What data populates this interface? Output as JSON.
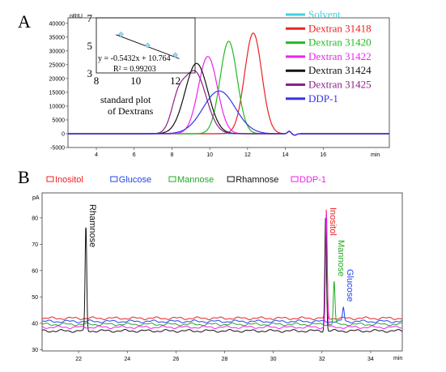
{
  "chart_data": [
    {
      "panel_label": "A",
      "type": "line",
      "y_unit": "nRIU",
      "x_unit": "min",
      "xlim": [
        2.5,
        19.5
      ],
      "ylim": [
        -5000,
        42000
      ],
      "x_ticks": [
        4,
        6,
        8,
        10,
        12,
        14,
        16
      ],
      "y_ticks": [
        -5000,
        0,
        5000,
        10000,
        15000,
        20000,
        25000,
        30000,
        35000,
        40000
      ],
      "legend_position": "right",
      "series": [
        {
          "name": "Solvent",
          "color": "#44d0e0",
          "peaks": []
        },
        {
          "name": "Dextran 31418",
          "color": "#ee2020",
          "peaks": [
            {
              "x": 12.3,
              "y": 36500,
              "w": 0.45
            }
          ]
        },
        {
          "name": "Dextran 31420",
          "color": "#22bb22",
          "peaks": [
            {
              "x": 11.0,
              "y": 33500,
              "w": 0.45
            }
          ]
        },
        {
          "name": "Dextran 31422",
          "color": "#ee22ee",
          "peaks": [
            {
              "x": 9.9,
              "y": 28000,
              "w": 0.5
            }
          ]
        },
        {
          "name": "Dextran 31424",
          "color": "#111111",
          "peaks": [
            {
              "x": 9.3,
              "y": 25500,
              "w": 0.6
            }
          ]
        },
        {
          "name": "Dextran 31425",
          "color": "#882288",
          "peaks": [
            {
              "x": 8.3,
              "y": 9000,
              "w": 0.35
            },
            {
              "x": 9.2,
              "y": 22500,
              "w": 0.6
            }
          ]
        },
        {
          "name": "DDP-1",
          "color": "#3333ee",
          "peaks": [
            {
              "x": 10.5,
              "y": 15500,
              "w": 0.85
            }
          ]
        }
      ],
      "inset": {
        "title": "standard plot of Dextrans",
        "equation": "y = -0.5432x + 10.764",
        "r_squared": "R² = 0.99203",
        "xlim": [
          8,
          13
        ],
        "ylim": [
          3,
          7
        ],
        "x_ticks": [
          8,
          10,
          12
        ],
        "y_ticks": [
          3,
          5,
          7
        ],
        "points": [
          {
            "x": 9.25,
            "y": 5.8
          },
          {
            "x": 10.6,
            "y": 5.0
          },
          {
            "x": 12.0,
            "y": 4.3
          }
        ],
        "fit": {
          "slope": -0.5432,
          "intercept": 10.764
        }
      }
    },
    {
      "panel_label": "B",
      "type": "line",
      "y_unit": "pA",
      "x_unit": "min",
      "xlim": [
        20.5,
        35.3
      ],
      "ylim": [
        29.5,
        89.5
      ],
      "x_ticks": [
        22,
        24,
        26,
        28,
        30,
        32,
        34
      ],
      "y_ticks": [
        30,
        40,
        50,
        60,
        70,
        80
      ],
      "legend_position": "top",
      "series": [
        {
          "name": "Inositol",
          "color": "#ee2020",
          "baseline": 41.9,
          "peaks": [
            {
              "x": 32.18,
              "y": 83,
              "w": 0.035
            }
          ]
        },
        {
          "name": "Glucose",
          "color": "#2244ee",
          "baseline": 40.7,
          "peaks": [
            {
              "x": 32.88,
              "y": 46,
              "w": 0.035
            }
          ]
        },
        {
          "name": "Mannose",
          "color": "#22aa22",
          "baseline": 39.6,
          "peaks": [
            {
              "x": 32.5,
              "y": 56,
              "w": 0.035
            }
          ]
        },
        {
          "name": "Rhamnose",
          "color": "#111111",
          "baseline": 37.1,
          "peaks": [
            {
              "x": 22.3,
              "y": 77,
              "w": 0.032
            },
            {
              "x": 32.15,
              "y": 81,
              "w": 0.035
            }
          ]
        },
        {
          "name": "DDP-1",
          "color": "#ee22ee",
          "baseline": 38.5,
          "peaks": [
            {
              "x": 32.18,
              "y": 83,
              "w": 0.035
            }
          ]
        }
      ],
      "annotations": [
        {
          "text": "Rhamnose",
          "color": "#111111",
          "x": 22.3
        },
        {
          "text": "Inositol",
          "color": "#ee2020",
          "x": 32.18
        },
        {
          "text": "Mannose",
          "color": "#22aa22",
          "x": 32.5
        },
        {
          "text": "Glucose",
          "color": "#2244ee",
          "x": 32.88
        }
      ]
    }
  ]
}
